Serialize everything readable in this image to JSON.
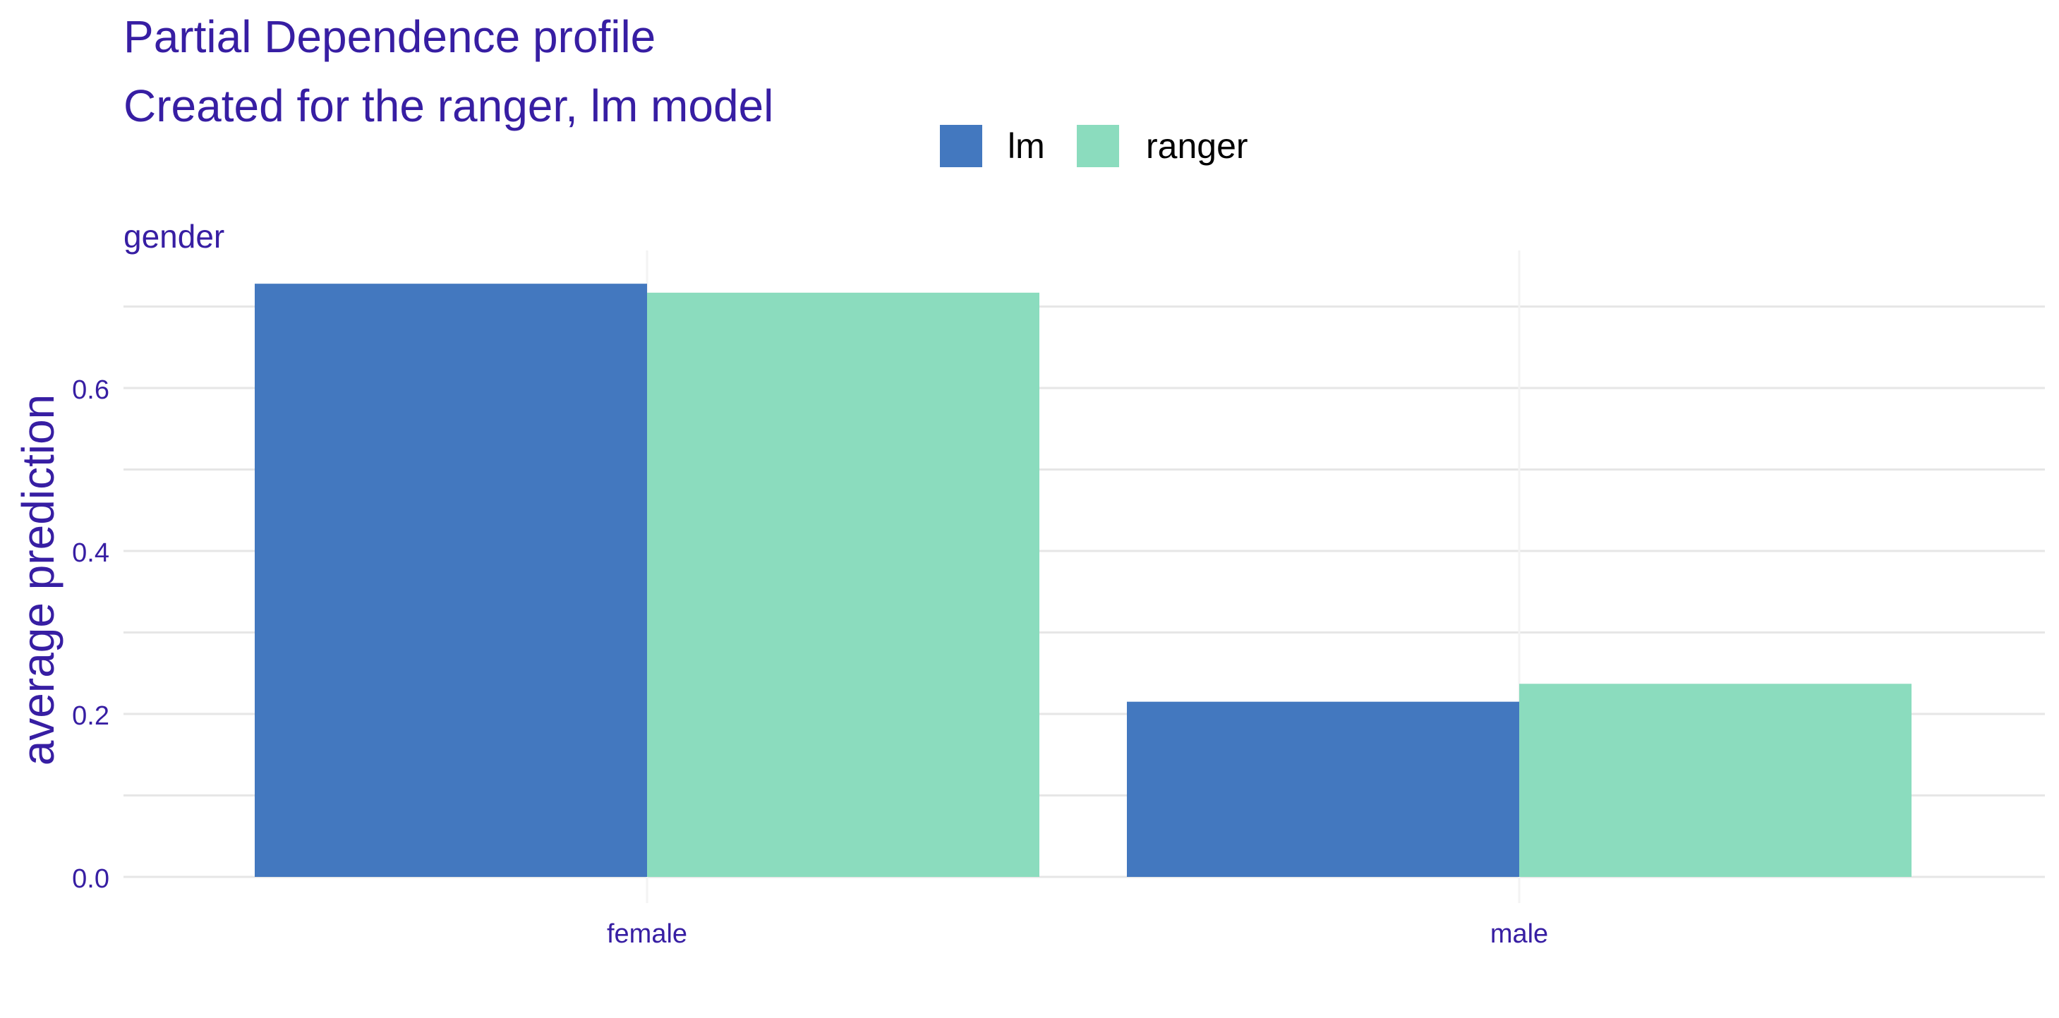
{
  "title": "Partial Dependence profile",
  "subtitle": "Created for the ranger, lm model",
  "colors": {
    "text": "#371ea3",
    "grid": "#e6e6e6",
    "lm": "#4378bf",
    "ranger": "#8bdcbe",
    "legend_text": "#000000"
  },
  "chart_data": {
    "type": "bar",
    "title": "Partial Dependence profile",
    "subtitle": "Created for the ranger, lm model",
    "facet_label": "gender",
    "xlabel": "",
    "ylabel": "average prediction",
    "categories": [
      "female",
      "male"
    ],
    "series": [
      {
        "name": "lm",
        "color": "#4378bf",
        "values": [
          0.728,
          0.215
        ]
      },
      {
        "name": "ranger",
        "color": "#8bdcbe",
        "values": [
          0.717,
          0.237
        ]
      }
    ],
    "ylim": [
      0,
      0.75
    ],
    "yticks": [
      0.0,
      0.2,
      0.4,
      0.6
    ],
    "ytick_labels": [
      "0.0",
      "0.2",
      "0.4",
      "0.6"
    ],
    "grid": true,
    "legend_position": "top"
  }
}
